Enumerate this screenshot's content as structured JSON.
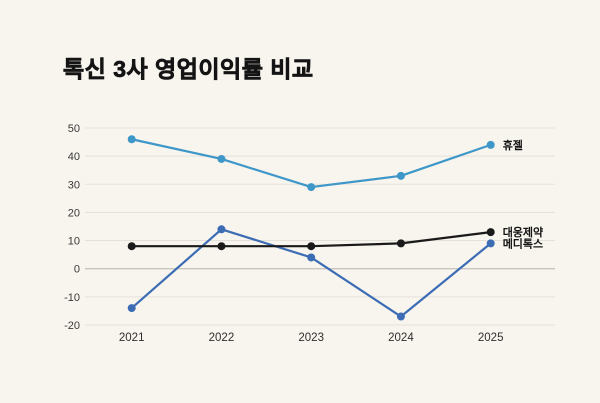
{
  "title": "톡신 3사 영업이익률 비교",
  "colors": {
    "background": "#f8f4ee",
    "grid": "#e4e1db",
    "zero_line": "#c8c5bf",
    "title_text": "#141414",
    "tick_text": "#3a3a3a"
  },
  "chart_data": {
    "type": "line",
    "title": "톡신 3사 영업이익률 비교",
    "categories": [
      "2021",
      "2022",
      "2023",
      "2024",
      "2025"
    ],
    "series": [
      {
        "name": "휴젤",
        "color": "#3e97c9",
        "values": [
          46,
          39,
          29,
          33,
          44
        ]
      },
      {
        "name": "메디톡스",
        "color": "#3b6cb4",
        "values": [
          -14,
          14,
          4,
          -17,
          9
        ]
      },
      {
        "name": "대웅제약",
        "color": "#1a1a1a",
        "values": [
          8,
          8,
          8,
          9,
          13
        ]
      }
    ],
    "xlabel": "",
    "ylabel": "",
    "ylim": [
      -20,
      50
    ],
    "yticks": [
      50,
      40,
      30,
      20,
      10,
      0,
      -10,
      -20
    ],
    "grid": true,
    "legend_position": "right-end-labels"
  }
}
